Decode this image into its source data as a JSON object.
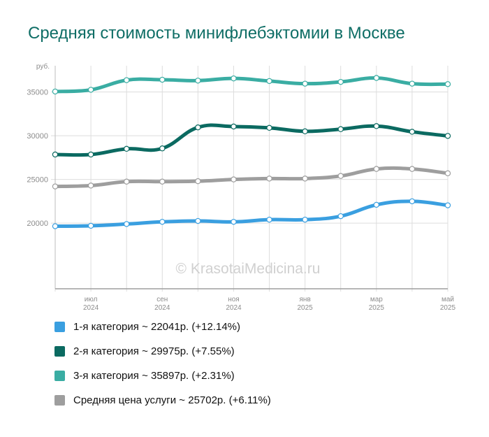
{
  "title": "Средняя стоимость минифлебэктомии в Москве",
  "watermark": "© KrasotaiMedicina.ru",
  "colors": {
    "title": "#0f6e66",
    "cat1": "#3a9fe0",
    "cat2": "#0b6a61",
    "cat3": "#3aada3",
    "avg": "#9e9e9e",
    "grid": "#dddddd"
  },
  "legend": [
    {
      "color": "#3a9fe0",
      "label": "1-я категория ~ 22041р. (+12.14%)"
    },
    {
      "color": "#0b6a61",
      "label": "2-я категория ~ 29975р. (+7.55%)"
    },
    {
      "color": "#3aada3",
      "label": "3-я категория ~ 35897р. (+2.31%)"
    },
    {
      "color": "#9e9e9e",
      "label": "Средняя цена услуги ~ 25702р. (+6.11%)"
    }
  ],
  "chart_data": {
    "type": "line",
    "title": "Средняя стоимость минифлебэктомии в Москве",
    "ylabel": "руб.",
    "ylim": [
      12500,
      38000
    ],
    "yticks": [
      20000,
      25000,
      30000,
      35000
    ],
    "x": [
      "2024-06",
      "2024-07",
      "2024-08",
      "2024-09",
      "2024-10",
      "2024-11",
      "2024-12",
      "2025-01",
      "2025-02",
      "2025-03",
      "2025-04",
      "2025-05"
    ],
    "xtick_labels": [
      {
        "index": 1,
        "month": "июл",
        "year": "2024"
      },
      {
        "index": 3,
        "month": "сен",
        "year": "2024"
      },
      {
        "index": 5,
        "month": "ноя",
        "year": "2024"
      },
      {
        "index": 7,
        "month": "янв",
        "year": "2025"
      },
      {
        "index": 9,
        "month": "мар",
        "year": "2025"
      },
      {
        "index": 11,
        "month": "май",
        "year": "2025"
      }
    ],
    "grid": true,
    "legend_position": "bottom",
    "series": [
      {
        "key": "cat3",
        "color": "#3aada3",
        "values": [
          35050,
          35250,
          36350,
          36400,
          36300,
          36550,
          36250,
          35950,
          36150,
          36600,
          35950,
          35897
        ]
      },
      {
        "key": "cat2",
        "color": "#0b6a61",
        "values": [
          27850,
          27850,
          28500,
          28550,
          30950,
          31050,
          30900,
          30500,
          30750,
          31100,
          30450,
          29975
        ]
      },
      {
        "key": "avg",
        "color": "#9e9e9e",
        "values": [
          24200,
          24300,
          24750,
          24750,
          24800,
          25000,
          25100,
          25100,
          25400,
          26200,
          26200,
          25702
        ]
      },
      {
        "key": "cat1",
        "color": "#3a9fe0",
        "values": [
          19650,
          19700,
          19900,
          20150,
          20250,
          20150,
          20400,
          20400,
          20800,
          22100,
          22500,
          22041
        ]
      }
    ]
  }
}
